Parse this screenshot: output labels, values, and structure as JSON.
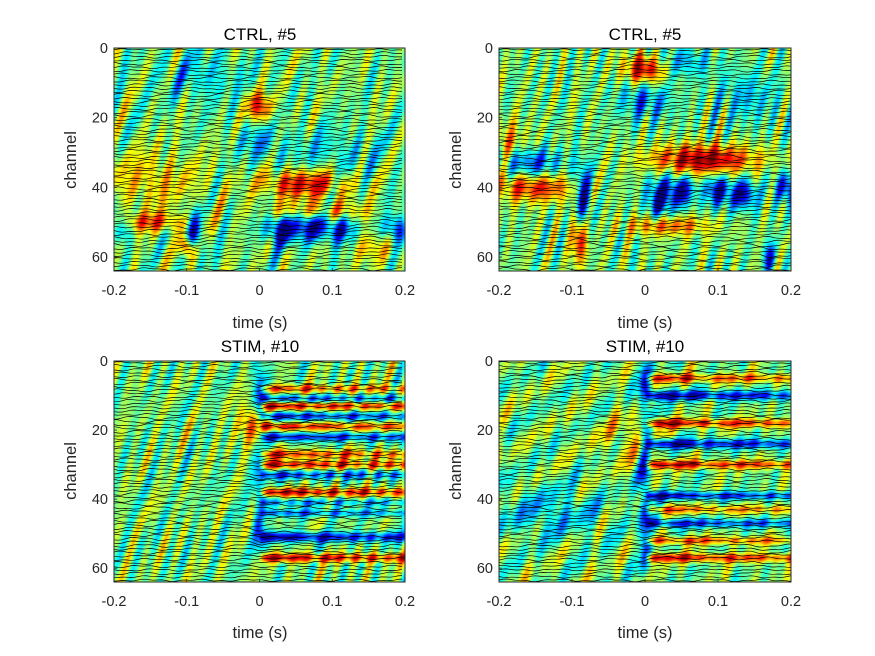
{
  "figure": {
    "background": "#ffffff"
  },
  "chart_data": [
    {
      "type": "heatmap",
      "title": "CTRL, #5",
      "xlabel": "time (s)",
      "ylabel": "channel",
      "xlim": [
        -0.2,
        0.2
      ],
      "ylim": [
        64,
        0
      ],
      "xticks": [
        -0.2,
        -0.1,
        0,
        0.1,
        0.2
      ],
      "xtick_labels": [
        "-0.2",
        "-0.1",
        "0",
        "0.1",
        "0.2"
      ],
      "yticks": [
        0,
        20,
        40,
        60
      ],
      "ytick_labels": [
        "0",
        "20",
        "40",
        "60"
      ],
      "channels": 64,
      "colormap": "jet",
      "overlay": "black waveform trace per channel",
      "blobs": [
        {
          "t": 0.0,
          "ch": 17,
          "val": 0.75,
          "st": 0.012,
          "sc": 3
        },
        {
          "t": -0.08,
          "ch": 8,
          "val": -0.3,
          "st": 0.04,
          "sc": 5
        },
        {
          "t": 0.0,
          "ch": 27,
          "val": -0.35,
          "st": 0.02,
          "sc": 4
        },
        {
          "t": -0.15,
          "ch": 38,
          "val": 0.35,
          "st": 0.05,
          "sc": 6
        },
        {
          "t": -0.15,
          "ch": 50,
          "val": 0.55,
          "st": 0.04,
          "sc": 2
        },
        {
          "t": -0.19,
          "ch": 51,
          "val": -0.55,
          "st": 0.01,
          "sc": 3
        },
        {
          "t": -0.09,
          "ch": 52,
          "val": -0.85,
          "st": 0.008,
          "sc": 4
        },
        {
          "t": -0.1,
          "ch": 57,
          "val": 0.9,
          "st": 0.006,
          "sc": 2
        },
        {
          "t": 0.06,
          "ch": 39,
          "val": 0.8,
          "st": 0.04,
          "sc": 3
        },
        {
          "t": 0.08,
          "ch": 47,
          "val": 0.5,
          "st": 0.05,
          "sc": 2
        },
        {
          "t": 0.03,
          "ch": 52,
          "val": -1.0,
          "st": 0.015,
          "sc": 3
        },
        {
          "t": 0.07,
          "ch": 51,
          "val": -0.85,
          "st": 0.015,
          "sc": 3
        },
        {
          "t": 0.11,
          "ch": 52,
          "val": -0.8,
          "st": 0.015,
          "sc": 3
        },
        {
          "t": 0.19,
          "ch": 52,
          "val": -0.75,
          "st": 0.012,
          "sc": 3
        },
        {
          "t": 0.1,
          "ch": 30,
          "val": -0.25,
          "st": 0.05,
          "sc": 5
        },
        {
          "t": 0.15,
          "ch": 57,
          "val": 0.35,
          "st": 0.02,
          "sc": 3
        }
      ]
    },
    {
      "type": "heatmap",
      "title": "CTRL, #5",
      "xlabel": "time (s)",
      "ylabel": "",
      "xlim": [
        -0.2,
        0.2
      ],
      "ylim": [
        64,
        0
      ],
      "xticks": [
        -0.2,
        -0.1,
        0,
        0.1,
        0.2
      ],
      "xtick_labels": [
        "-0.2",
        "-0.1",
        "0",
        "0.1",
        "0.2"
      ],
      "yticks": [
        0,
        20,
        40,
        60
      ],
      "ytick_labels": [
        "0",
        "20",
        "40",
        "60"
      ],
      "channels": 64,
      "colormap": "jet",
      "overlay": "black waveform trace per channel",
      "blobs": [
        {
          "t": 0.0,
          "ch": 6,
          "val": 0.95,
          "st": 0.02,
          "sc": 3
        },
        {
          "t": 0.05,
          "ch": 4,
          "val": -0.4,
          "st": 0.03,
          "sc": 3
        },
        {
          "t": 0.0,
          "ch": 15,
          "val": -0.5,
          "st": 0.025,
          "sc": 4
        },
        {
          "t": -0.16,
          "ch": 33,
          "val": -0.7,
          "st": 0.03,
          "sc": 3
        },
        {
          "t": -0.15,
          "ch": 40,
          "val": 0.7,
          "st": 0.04,
          "sc": 3
        },
        {
          "t": -0.19,
          "ch": 28,
          "val": 0.45,
          "st": 0.02,
          "sc": 5
        },
        {
          "t": -0.085,
          "ch": 42,
          "val": -0.95,
          "st": 0.008,
          "sc": 6
        },
        {
          "t": -0.09,
          "ch": 55,
          "val": 0.75,
          "st": 0.008,
          "sc": 5
        },
        {
          "t": 0.08,
          "ch": 32,
          "val": 0.95,
          "st": 0.05,
          "sc": 3
        },
        {
          "t": 0.02,
          "ch": 43,
          "val": -0.95,
          "st": 0.012,
          "sc": 4
        },
        {
          "t": 0.05,
          "ch": 41,
          "val": -0.9,
          "st": 0.012,
          "sc": 3
        },
        {
          "t": 0.1,
          "ch": 41,
          "val": -0.9,
          "st": 0.012,
          "sc": 3
        },
        {
          "t": 0.135,
          "ch": 42,
          "val": -0.9,
          "st": 0.012,
          "sc": 3
        },
        {
          "t": 0.195,
          "ch": 40,
          "val": -0.8,
          "st": 0.012,
          "sc": 3
        },
        {
          "t": 0.03,
          "ch": 51,
          "val": 0.6,
          "st": 0.04,
          "sc": 2
        },
        {
          "t": 0.14,
          "ch": 14,
          "val": -0.35,
          "st": 0.03,
          "sc": 5
        },
        {
          "t": 0.17,
          "ch": 60,
          "val": -0.7,
          "st": 0.006,
          "sc": 3
        }
      ]
    },
    {
      "type": "heatmap",
      "title": "STIM, #10",
      "xlabel": "time (s)",
      "ylabel": "channel",
      "xlim": [
        -0.2,
        0.2
      ],
      "ylim": [
        64,
        0
      ],
      "xticks": [
        -0.2,
        -0.1,
        0,
        0.1,
        0.2
      ],
      "xtick_labels": [
        "-0.2",
        "-0.1",
        "0",
        "0.1",
        "0.2"
      ],
      "yticks": [
        0,
        20,
        40,
        60
      ],
      "ytick_labels": [
        "0",
        "20",
        "40",
        "60"
      ],
      "channels": 64,
      "colormap": "jet",
      "overlay": "black waveform trace per channel",
      "blobs": [
        {
          "t": -0.01,
          "ch": 18,
          "val": 0.6,
          "st": 0.015,
          "sc": 4
        },
        {
          "t": 0.0,
          "ch": 10,
          "val": -0.6,
          "st": 0.006,
          "sc": 8
        },
        {
          "t": 0.0,
          "ch": 35,
          "val": -0.5,
          "st": 0.006,
          "sc": 6
        },
        {
          "t": 0.0,
          "ch": 50,
          "val": -0.6,
          "st": 0.006,
          "sc": 4
        }
      ],
      "bands": [
        {
          "ch": 8,
          "val": 0.7,
          "w": 0.8
        },
        {
          "ch": 11,
          "val": -0.7,
          "w": 0.8
        },
        {
          "ch": 13,
          "val": 0.9,
          "w": 0.9
        },
        {
          "ch": 16,
          "val": -0.8,
          "w": 0.9
        },
        {
          "ch": 19,
          "val": 0.8,
          "w": 0.9
        },
        {
          "ch": 22,
          "val": -0.85,
          "w": 0.9
        },
        {
          "ch": 27,
          "val": 0.75,
          "w": 0.9
        },
        {
          "ch": 30,
          "val": 0.85,
          "w": 0.9
        },
        {
          "ch": 33,
          "val": -0.7,
          "w": 0.9
        },
        {
          "ch": 38,
          "val": 0.95,
          "w": 0.9
        },
        {
          "ch": 41,
          "val": -0.5,
          "w": 0.8
        },
        {
          "ch": 44,
          "val": -0.6,
          "w": 0.8
        },
        {
          "ch": 51,
          "val": -1.0,
          "w": 1.0
        },
        {
          "ch": 57,
          "val": 0.95,
          "w": 0.9
        }
      ]
    },
    {
      "type": "heatmap",
      "title": "STIM, #10",
      "xlabel": "time (s)",
      "ylabel": "channel",
      "xlim": [
        -0.2,
        0.2
      ],
      "ylim": [
        64,
        0
      ],
      "xticks": [
        -0.2,
        -0.1,
        0,
        0.1,
        0.2
      ],
      "xtick_labels": [
        "-0.2",
        "-0.1",
        "0",
        "0.1",
        "0.2"
      ],
      "yticks": [
        0,
        20,
        40,
        60
      ],
      "ytick_labels": [
        "0",
        "20",
        "40",
        "60"
      ],
      "channels": 64,
      "colormap": "jet",
      "overlay": "black waveform trace per channel",
      "blobs": [
        {
          "t": -0.13,
          "ch": 44,
          "val": -0.35,
          "st": 0.05,
          "sc": 5
        },
        {
          "t": -0.02,
          "ch": 22,
          "val": 0.3,
          "st": 0.03,
          "sc": 5
        },
        {
          "t": 0.0,
          "ch": 8,
          "val": -0.6,
          "st": 0.006,
          "sc": 8
        },
        {
          "t": 0.0,
          "ch": 30,
          "val": -0.6,
          "st": 0.006,
          "sc": 8
        },
        {
          "t": 0.0,
          "ch": 50,
          "val": -0.6,
          "st": 0.006,
          "sc": 8
        }
      ],
      "bands": [
        {
          "ch": 5,
          "val": 0.75,
          "w": 0.9
        },
        {
          "ch": 10,
          "val": -1.0,
          "w": 1.0
        },
        {
          "ch": 18,
          "val": 0.9,
          "w": 0.9
        },
        {
          "ch": 24,
          "val": -1.0,
          "w": 1.0
        },
        {
          "ch": 30,
          "val": 0.9,
          "w": 0.9
        },
        {
          "ch": 39,
          "val": -0.9,
          "w": 0.8
        },
        {
          "ch": 43,
          "val": 0.6,
          "w": 0.8
        },
        {
          "ch": 47,
          "val": -0.8,
          "w": 0.9
        },
        {
          "ch": 52,
          "val": 0.7,
          "w": 0.8
        },
        {
          "ch": 57,
          "val": 0.9,
          "w": 0.9
        }
      ]
    }
  ]
}
